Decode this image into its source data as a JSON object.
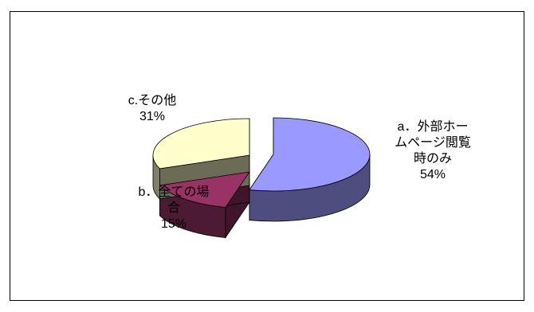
{
  "chart_data": {
    "type": "pie",
    "title": "",
    "style": "3d-exploded",
    "slices": [
      {
        "label_lines": [
          "a．外部ホー",
          "ムページ閲覧",
          "時のみ"
        ],
        "value": 54,
        "value_label": "54%",
        "color": "#9999ff"
      },
      {
        "label_lines": [
          "b．全ての場",
          "合"
        ],
        "value": 15,
        "value_label": "15%",
        "color": "#993366"
      },
      {
        "label_lines": [
          "c.その他"
        ],
        "value": 31,
        "value_label": "31%",
        "color": "#ffffcc"
      }
    ]
  }
}
